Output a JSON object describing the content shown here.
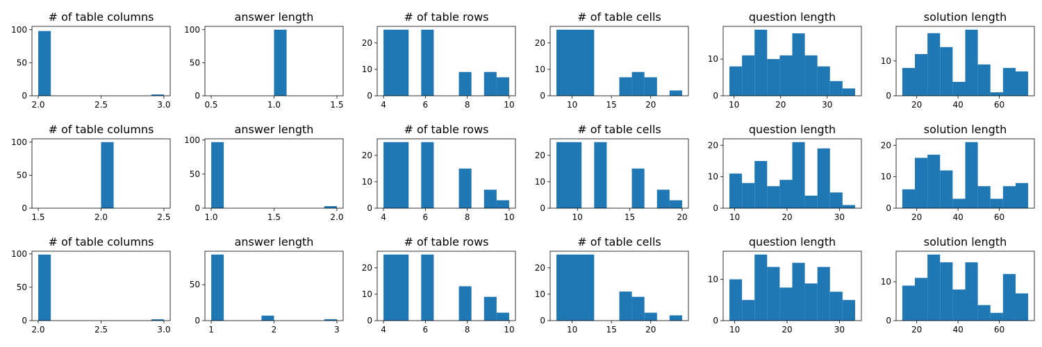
{
  "chart_data": [
    {
      "type": "bar",
      "title": "# of table columns",
      "xlim": [
        1.95,
        3.05
      ],
      "ylim": [
        0,
        105
      ],
      "xticks": [
        2.0,
        2.5,
        3.0
      ],
      "xtick_labels": [
        "2.0",
        "2.5",
        "3.0"
      ],
      "yticks": [
        0,
        50,
        100
      ],
      "ytick_labels": [
        "0",
        "50",
        "100"
      ],
      "bins": [
        [
          2.0,
          2.1
        ],
        [
          2.9,
          3.0
        ]
      ],
      "values": [
        98,
        2
      ],
      "color": "#1f77b4"
    },
    {
      "type": "bar",
      "title": "answer length",
      "xlim": [
        0.45,
        1.55
      ],
      "ylim": [
        0,
        105
      ],
      "xticks": [
        0.5,
        1.0,
        1.5
      ],
      "xtick_labels": [
        "0.5",
        "1.0",
        "1.5"
      ],
      "yticks": [
        0,
        50,
        100
      ],
      "ytick_labels": [
        "0",
        "50",
        "100"
      ],
      "bins": [
        [
          1.0,
          1.1
        ]
      ],
      "values": [
        100
      ],
      "color": "#1f77b4"
    },
    {
      "type": "bar",
      "title": "# of table rows",
      "xlim": [
        3.7,
        10.3
      ],
      "ylim": [
        0,
        26.25
      ],
      "xticks": [
        4,
        6,
        8,
        10
      ],
      "xtick_labels": [
        "4",
        "6",
        "8",
        "10"
      ],
      "yticks": [
        0,
        10,
        20
      ],
      "ytick_labels": [
        "0",
        "10",
        "20"
      ],
      "bins": [
        [
          4,
          5.2
        ],
        [
          5.8,
          6.4
        ],
        [
          7.6,
          8.2
        ],
        [
          8.8,
          9.4
        ],
        [
          9.4,
          10
        ]
      ],
      "values": [
        25,
        25,
        9,
        9,
        7
      ],
      "color": "#1f77b4"
    },
    {
      "type": "bar",
      "title": "# of table cells",
      "xlim": [
        7.2,
        24.8
      ],
      "ylim": [
        0,
        26.25
      ],
      "xticks": [
        10,
        15,
        20
      ],
      "xtick_labels": [
        "10",
        "15",
        "20"
      ],
      "yticks": [
        0,
        10,
        20
      ],
      "ytick_labels": [
        "0",
        "10",
        "20"
      ],
      "bins": [
        [
          8,
          12.8
        ],
        [
          16,
          17.6
        ],
        [
          17.6,
          19.2
        ],
        [
          19.2,
          20.8
        ],
        [
          22.4,
          24
        ]
      ],
      "values": [
        25,
        7,
        9,
        7,
        2
      ],
      "color": "#1f77b4"
    },
    {
      "type": "bar",
      "title": "question length",
      "xlim": [
        7.65,
        37.35
      ],
      "ylim": [
        0,
        18.9
      ],
      "xticks": [
        10,
        20,
        30
      ],
      "xtick_labels": [
        "10",
        "20",
        "30"
      ],
      "yticks": [
        0,
        10
      ],
      "ytick_labels": [
        "0",
        "10"
      ],
      "bins": [
        [
          9,
          11.7
        ],
        [
          11.7,
          14.4
        ],
        [
          14.4,
          17.1
        ],
        [
          17.1,
          19.8
        ],
        [
          19.8,
          22.5
        ],
        [
          22.5,
          25.2
        ],
        [
          25.2,
          27.9
        ],
        [
          27.9,
          30.6
        ],
        [
          30.6,
          33.3
        ],
        [
          33.3,
          36
        ]
      ],
      "values": [
        8,
        11,
        18,
        10,
        11,
        17,
        11,
        8,
        4,
        2
      ],
      "color": "#1f77b4"
    },
    {
      "type": "bar",
      "title": "solution length",
      "xlim": [
        10,
        77
      ],
      "ylim": [
        0,
        19.95
      ],
      "xticks": [
        20,
        40,
        60
      ],
      "xtick_labels": [
        "20",
        "40",
        "60"
      ],
      "yticks": [
        0,
        10
      ],
      "ytick_labels": [
        "0",
        "10"
      ],
      "bins": [
        [
          13,
          19.1
        ],
        [
          19.1,
          25.2
        ],
        [
          25.2,
          31.3
        ],
        [
          31.3,
          37.4
        ],
        [
          37.4,
          43.5
        ],
        [
          43.5,
          49.6
        ],
        [
          49.6,
          55.7
        ],
        [
          55.7,
          61.8
        ],
        [
          61.8,
          67.9
        ],
        [
          67.9,
          74
        ]
      ],
      "values": [
        8,
        12,
        18,
        14,
        4,
        19,
        9,
        1,
        8,
        7
      ],
      "color": "#1f77b4"
    },
    {
      "type": "bar",
      "title": "# of table columns",
      "xlim": [
        1.45,
        2.55
      ],
      "ylim": [
        0,
        105
      ],
      "xticks": [
        1.5,
        2.0,
        2.5
      ],
      "xtick_labels": [
        "1.5",
        "2.0",
        "2.5"
      ],
      "yticks": [
        0,
        50,
        100
      ],
      "ytick_labels": [
        "0",
        "50",
        "100"
      ],
      "bins": [
        [
          2.0,
          2.1
        ]
      ],
      "values": [
        100
      ],
      "color": "#1f77b4"
    },
    {
      "type": "bar",
      "title": "answer length",
      "xlim": [
        0.95,
        2.05
      ],
      "ylim": [
        0,
        101.85
      ],
      "xticks": [
        1.0,
        1.5,
        2.0
      ],
      "xtick_labels": [
        "1.0",
        "1.5",
        "2.0"
      ],
      "yticks": [
        0,
        50,
        100
      ],
      "ytick_labels": [
        "0",
        "50",
        "100"
      ],
      "bins": [
        [
          1.0,
          1.1
        ],
        [
          1.9,
          2.0
        ]
      ],
      "values": [
        97,
        3
      ],
      "color": "#1f77b4"
    },
    {
      "type": "bar",
      "title": "# of table rows",
      "xlim": [
        3.7,
        10.3
      ],
      "ylim": [
        0,
        26.25
      ],
      "xticks": [
        4,
        6,
        8,
        10
      ],
      "xtick_labels": [
        "4",
        "6",
        "8",
        "10"
      ],
      "yticks": [
        0,
        10,
        20
      ],
      "ytick_labels": [
        "0",
        "10",
        "20"
      ],
      "bins": [
        [
          4,
          5.2
        ],
        [
          5.8,
          6.4
        ],
        [
          7.6,
          8.2
        ],
        [
          8.8,
          9.4
        ],
        [
          9.4,
          10
        ]
      ],
      "values": [
        25,
        25,
        15,
        7,
        3
      ],
      "color": "#1f77b4"
    },
    {
      "type": "bar",
      "title": "# of table cells",
      "xlim": [
        7.4,
        20.6
      ],
      "ylim": [
        0,
        26.25
      ],
      "xticks": [
        10,
        15,
        20
      ],
      "xtick_labels": [
        "10",
        "15",
        "20"
      ],
      "yticks": [
        0,
        10,
        20
      ],
      "ytick_labels": [
        "0",
        "10",
        "20"
      ],
      "bins": [
        [
          8,
          10.4
        ],
        [
          11.6,
          12.8
        ],
        [
          15.2,
          16.4
        ],
        [
          17.6,
          18.8
        ],
        [
          18.8,
          20
        ]
      ],
      "values": [
        25,
        25,
        15,
        7,
        3
      ],
      "color": "#1f77b4"
    },
    {
      "type": "bar",
      "title": "question length",
      "xlim": [
        7.8,
        34.2
      ],
      "ylim": [
        0,
        22.05
      ],
      "xticks": [
        10,
        20,
        30
      ],
      "xtick_labels": [
        "10",
        "20",
        "30"
      ],
      "yticks": [
        0,
        10,
        20
      ],
      "ytick_labels": [
        "0",
        "10",
        "20"
      ],
      "bins": [
        [
          9,
          11.4
        ],
        [
          11.4,
          13.8
        ],
        [
          13.8,
          16.2
        ],
        [
          16.2,
          18.6
        ],
        [
          18.6,
          21
        ],
        [
          21,
          23.4
        ],
        [
          23.4,
          25.8
        ],
        [
          25.8,
          28.2
        ],
        [
          28.2,
          30.6
        ],
        [
          30.6,
          33
        ]
      ],
      "values": [
        11,
        8,
        15,
        7,
        9,
        21,
        4,
        19,
        5,
        1
      ],
      "color": "#1f77b4"
    },
    {
      "type": "bar",
      "title": "solution length",
      "xlim": [
        10,
        77
      ],
      "ylim": [
        0,
        22.05
      ],
      "xticks": [
        20,
        40,
        60
      ],
      "xtick_labels": [
        "20",
        "40",
        "60"
      ],
      "yticks": [
        0,
        10,
        20
      ],
      "ytick_labels": [
        "0",
        "10",
        "20"
      ],
      "bins": [
        [
          13,
          19.1
        ],
        [
          19.1,
          25.2
        ],
        [
          25.2,
          31.3
        ],
        [
          31.3,
          37.4
        ],
        [
          37.4,
          43.5
        ],
        [
          43.5,
          49.6
        ],
        [
          49.6,
          55.7
        ],
        [
          55.7,
          61.8
        ],
        [
          61.8,
          67.9
        ],
        [
          67.9,
          74
        ]
      ],
      "values": [
        6,
        16,
        17,
        12,
        3,
        21,
        7,
        3,
        7,
        8
      ],
      "color": "#1f77b4"
    },
    {
      "type": "bar",
      "title": "# of table columns",
      "xlim": [
        1.95,
        3.05
      ],
      "ylim": [
        0,
        104
      ],
      "xticks": [
        2.0,
        2.5,
        3.0
      ],
      "xtick_labels": [
        "2.0",
        "2.5",
        "3.0"
      ],
      "yticks": [
        0,
        50,
        100
      ],
      "ytick_labels": [
        "0",
        "50",
        "100"
      ],
      "bins": [
        [
          2.0,
          2.1
        ],
        [
          2.9,
          3.0
        ]
      ],
      "values": [
        99,
        2
      ],
      "color": "#1f77b4"
    },
    {
      "type": "bar",
      "title": "answer length",
      "xlim": [
        0.9,
        3.1
      ],
      "ylim": [
        0,
        96.6
      ],
      "xticks": [
        1,
        2,
        3
      ],
      "xtick_labels": [
        "1",
        "2",
        "3"
      ],
      "yticks": [
        0,
        50
      ],
      "ytick_labels": [
        "0",
        "50"
      ],
      "bins": [
        [
          1.0,
          1.2
        ],
        [
          1.8,
          2.0
        ],
        [
          2.8,
          3.0
        ]
      ],
      "values": [
        92,
        7,
        2
      ],
      "color": "#1f77b4"
    },
    {
      "type": "bar",
      "title": "# of table rows",
      "xlim": [
        3.7,
        10.3
      ],
      "ylim": [
        0,
        26.25
      ],
      "xticks": [
        4,
        6,
        8,
        10
      ],
      "xtick_labels": [
        "4",
        "6",
        "8",
        "10"
      ],
      "yticks": [
        0,
        10,
        20
      ],
      "ytick_labels": [
        "0",
        "10",
        "20"
      ],
      "bins": [
        [
          4,
          5.2
        ],
        [
          5.8,
          6.4
        ],
        [
          7.6,
          8.2
        ],
        [
          8.8,
          9.4
        ],
        [
          9.4,
          10
        ]
      ],
      "values": [
        25,
        25,
        13,
        9,
        3
      ],
      "color": "#1f77b4"
    },
    {
      "type": "bar",
      "title": "# of table cells",
      "xlim": [
        7.2,
        24.8
      ],
      "ylim": [
        0,
        26.25
      ],
      "xticks": [
        10,
        15,
        20
      ],
      "xtick_labels": [
        "10",
        "15",
        "20"
      ],
      "yticks": [
        0,
        10,
        20
      ],
      "ytick_labels": [
        "0",
        "10",
        "20"
      ],
      "bins": [
        [
          8,
          12.8
        ],
        [
          16,
          17.6
        ],
        [
          17.6,
          19.2
        ],
        [
          19.2,
          20.8
        ],
        [
          22.4,
          24
        ]
      ],
      "values": [
        25,
        11,
        9,
        3,
        2
      ],
      "color": "#1f77b4"
    },
    {
      "type": "bar",
      "title": "question length",
      "xlim": [
        7.8,
        34.2
      ],
      "ylim": [
        0,
        16.8
      ],
      "xticks": [
        10,
        20,
        30
      ],
      "xtick_labels": [
        "10",
        "20",
        "30"
      ],
      "yticks": [
        0,
        10
      ],
      "ytick_labels": [
        "0",
        "10"
      ],
      "bins": [
        [
          9,
          11.4
        ],
        [
          11.4,
          13.8
        ],
        [
          13.8,
          16.2
        ],
        [
          16.2,
          18.6
        ],
        [
          18.6,
          21
        ],
        [
          21,
          23.4
        ],
        [
          23.4,
          25.8
        ],
        [
          25.8,
          28.2
        ],
        [
          28.2,
          30.6
        ],
        [
          30.6,
          33
        ]
      ],
      "values": [
        10,
        5,
        16,
        13,
        8,
        14,
        9,
        13,
        7,
        5
      ],
      "color": "#1f77b4"
    },
    {
      "type": "bar",
      "title": "solution length",
      "xlim": [
        10,
        77
      ],
      "ylim": [
        0,
        17.85
      ],
      "xticks": [
        20,
        40,
        60
      ],
      "xtick_labels": [
        "20",
        "40",
        "60"
      ],
      "yticks": [
        0,
        10
      ],
      "ytick_labels": [
        "0",
        "10"
      ],
      "bins": [
        [
          13,
          19.1
        ],
        [
          19.1,
          25.2
        ],
        [
          25.2,
          31.3
        ],
        [
          31.3,
          37.4
        ],
        [
          37.4,
          43.5
        ],
        [
          43.5,
          49.6
        ],
        [
          49.6,
          55.7
        ],
        [
          55.7,
          61.8
        ],
        [
          61.8,
          67.9
        ],
        [
          67.9,
          74
        ]
      ],
      "values": [
        9,
        11,
        17,
        15,
        8,
        15,
        4,
        2,
        12,
        7
      ],
      "color": "#1f77b4"
    }
  ]
}
